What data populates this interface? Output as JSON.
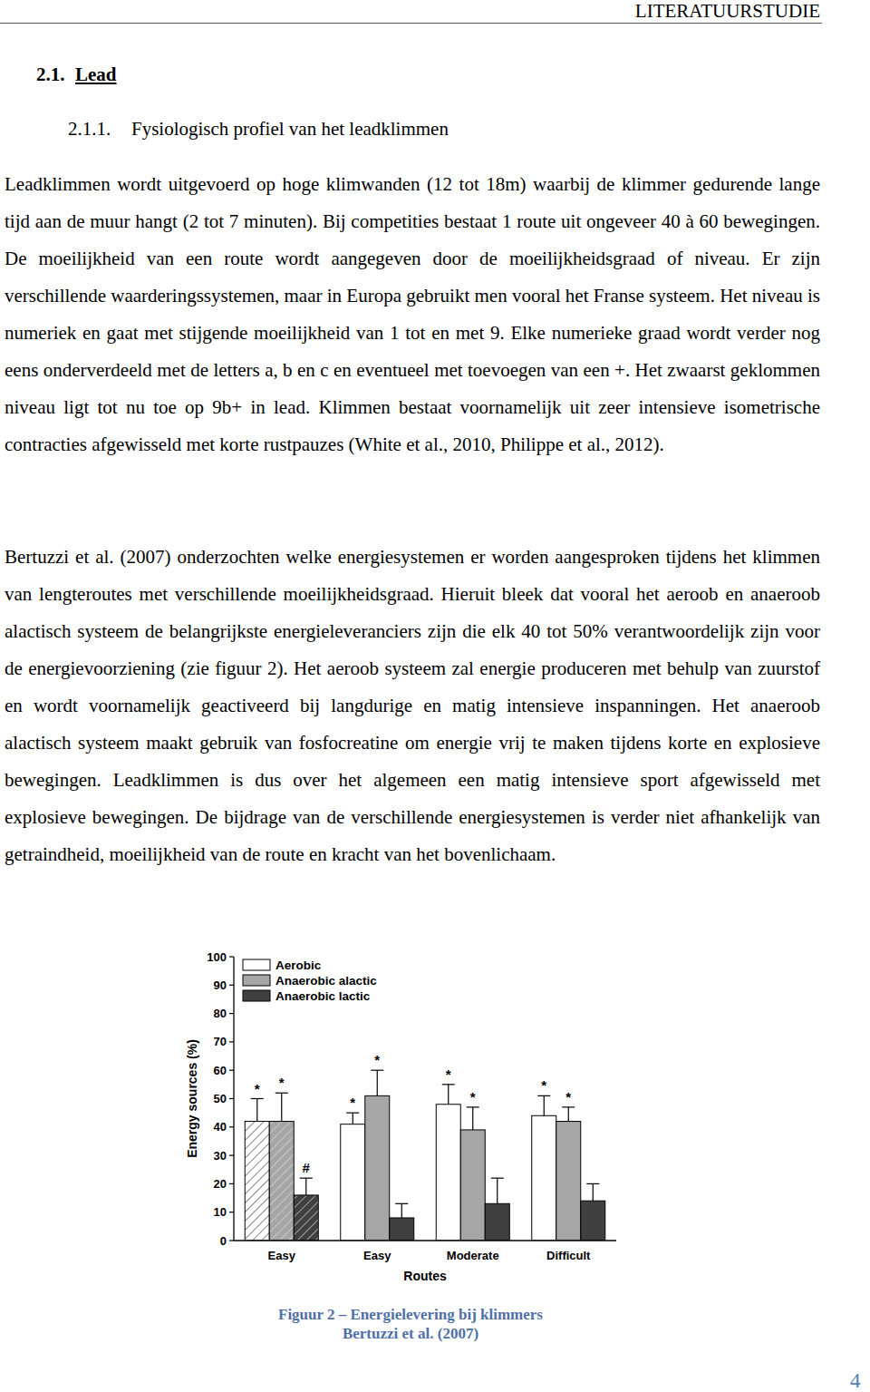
{
  "header": {
    "running_title": "LITERATUURSTUDIE"
  },
  "section": {
    "number": "2.1.",
    "title": "Lead"
  },
  "subsection": {
    "number": "2.1.1.",
    "title": "Fysiologisch profiel van het leadklimmen"
  },
  "paragraphs": [
    "Leadklimmen wordt uitgevoerd op hoge klimwanden (12 tot 18m) waarbij de klimmer gedurende lange tijd aan de muur hangt (2 tot 7 minuten). Bij competities bestaat 1 route uit ongeveer 40 à 60 bewegingen. De moeilijkheid van een route wordt aangegeven door de moeilijkheidsgraad of niveau. Er zijn verschillende waarderingssystemen, maar in Europa gebruikt men vooral het Franse systeem. Het niveau is numeriek en gaat met stijgende moeilijkheid van 1 tot en met 9. Elke numerieke graad wordt verder nog eens onderverdeeld met de letters a, b en c en eventueel met toevoegen van een +. Het zwaarst geklommen niveau ligt tot nu toe op 9b+ in lead. Klimmen bestaat voornamelijk uit zeer intensieve isometrische contracties afgewisseld met korte rustpauzes (White et al., 2010, Philippe et al., 2012).",
    "Bertuzzi et al. (2007) onderzochten welke energiesystemen er worden aangesproken tijdens het klimmen van lengteroutes met verschillende moeilijkheidsgraad. Hieruit bleek dat vooral het aeroob en anaeroob alactisch systeem de belangrijkste energieleveranciers zijn die elk 40 tot 50% verantwoordelijk zijn voor de energievoorziening (zie figuur 2). Het aeroob systeem zal energie produceren met behulp van zuurstof en wordt voornamelijk geactiveerd bij langdurige en matig intensieve inspanningen. Het anaeroob alactisch systeem maakt gebruik van fosfocreatine om energie vrij te maken tijdens korte en explosieve bewegingen. Leadklimmen is dus over het algemeen een matig intensieve sport afgewisseld met explosieve bewegingen. De bijdrage van de verschillende energiesystemen is verder niet afhankelijk van getraindheid, moeilijkheid van de route en kracht van het bovenlichaam."
  ],
  "chart_data": {
    "type": "bar",
    "x_label": "Routes",
    "y_label": "Energy sources (%)",
    "categories": [
      "Easy",
      "Easy",
      "Moderate",
      "Difficult"
    ],
    "ylim": [
      0,
      100
    ],
    "yticks": [
      0,
      10,
      20,
      30,
      40,
      50,
      60,
      70,
      80,
      90,
      100
    ],
    "legend": "top-left",
    "series": [
      {
        "name": "Aerobic",
        "color": "#ffffff",
        "values": [
          42,
          41,
          48,
          44
        ],
        "errors": [
          8,
          4,
          7,
          7
        ],
        "annotations": [
          "*",
          "*",
          "*",
          "*"
        ]
      },
      {
        "name": "Anaerobic alactic",
        "color": "#a6a6a6",
        "values": [
          42,
          51,
          39,
          42
        ],
        "errors": [
          10,
          9,
          8,
          5
        ],
        "annotations": [
          "*",
          "*",
          "*",
          "*"
        ]
      },
      {
        "name": "Anaerobic lactic",
        "color": "#404040",
        "values": [
          16,
          8,
          13,
          14
        ],
        "errors": [
          6,
          5,
          9,
          6
        ],
        "annotations": [
          "#",
          null,
          null,
          null
        ]
      }
    ]
  },
  "figure": {
    "caption": "Figuur 2 – Energielevering bij klimmers",
    "source": "Bertuzzi et al. (2007)"
  },
  "page_number": "4"
}
